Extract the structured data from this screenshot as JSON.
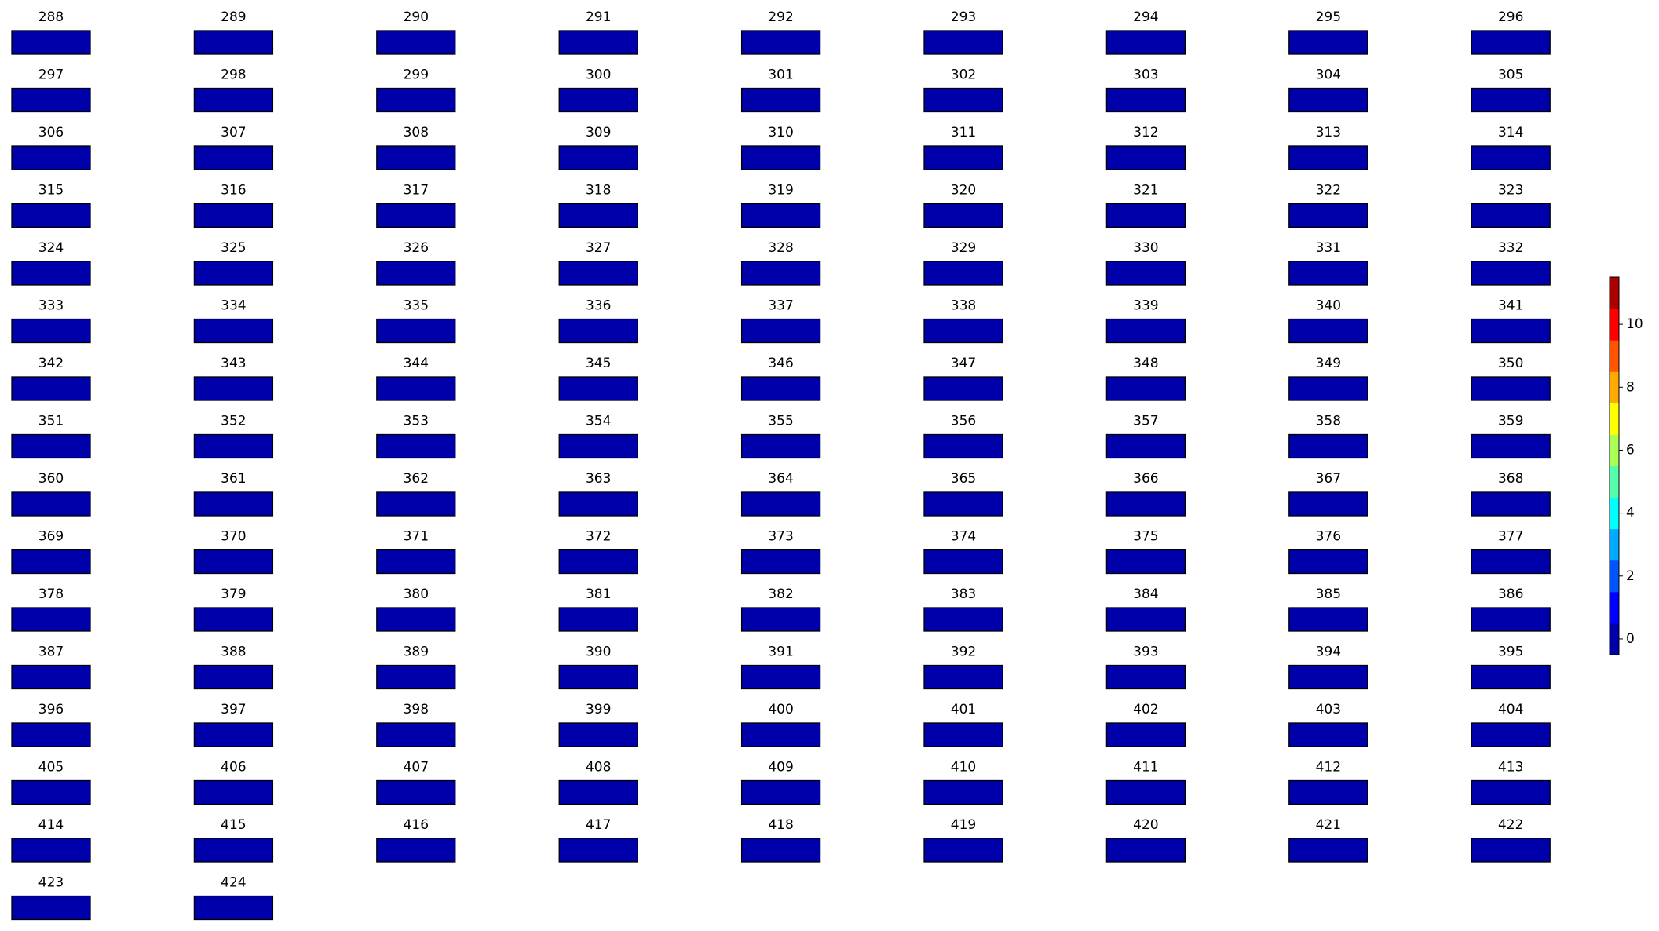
{
  "chart_data": {
    "type": "heatmap-grid",
    "panels": [
      288,
      289,
      290,
      291,
      292,
      293,
      294,
      295,
      296,
      297,
      298,
      299,
      300,
      301,
      302,
      303,
      304,
      305,
      306,
      307,
      308,
      309,
      310,
      311,
      312,
      313,
      314,
      315,
      316,
      317,
      318,
      319,
      320,
      321,
      322,
      323,
      324,
      325,
      326,
      327,
      328,
      329,
      330,
      331,
      332,
      333,
      334,
      335,
      336,
      337,
      338,
      339,
      340,
      341,
      342,
      343,
      344,
      345,
      346,
      347,
      348,
      349,
      350,
      351,
      352,
      353,
      354,
      355,
      356,
      357,
      358,
      359,
      360,
      361,
      362,
      363,
      364,
      365,
      366,
      367,
      368,
      369,
      370,
      371,
      372,
      373,
      374,
      375,
      376,
      377,
      378,
      379,
      380,
      381,
      382,
      383,
      384,
      385,
      386,
      387,
      388,
      389,
      390,
      391,
      392,
      393,
      394,
      395,
      396,
      397,
      398,
      399,
      400,
      401,
      402,
      403,
      404,
      405,
      406,
      407,
      408,
      409,
      410,
      411,
      412,
      413,
      414,
      415,
      416,
      417,
      418,
      419,
      420,
      421,
      422,
      423,
      424
    ],
    "colorbar": {
      "lim": [
        -0.5,
        11.5
      ],
      "ticks": [
        0,
        2,
        4,
        6,
        8,
        10
      ],
      "colors": [
        "#0000aa",
        "#0000ff",
        "#0055ff",
        "#00aaff",
        "#00ffff",
        "#55ffaa",
        "#aaff55",
        "#ffff00",
        "#ffaa00",
        "#ff5500",
        "#ff0000",
        "#aa0000"
      ]
    }
  }
}
